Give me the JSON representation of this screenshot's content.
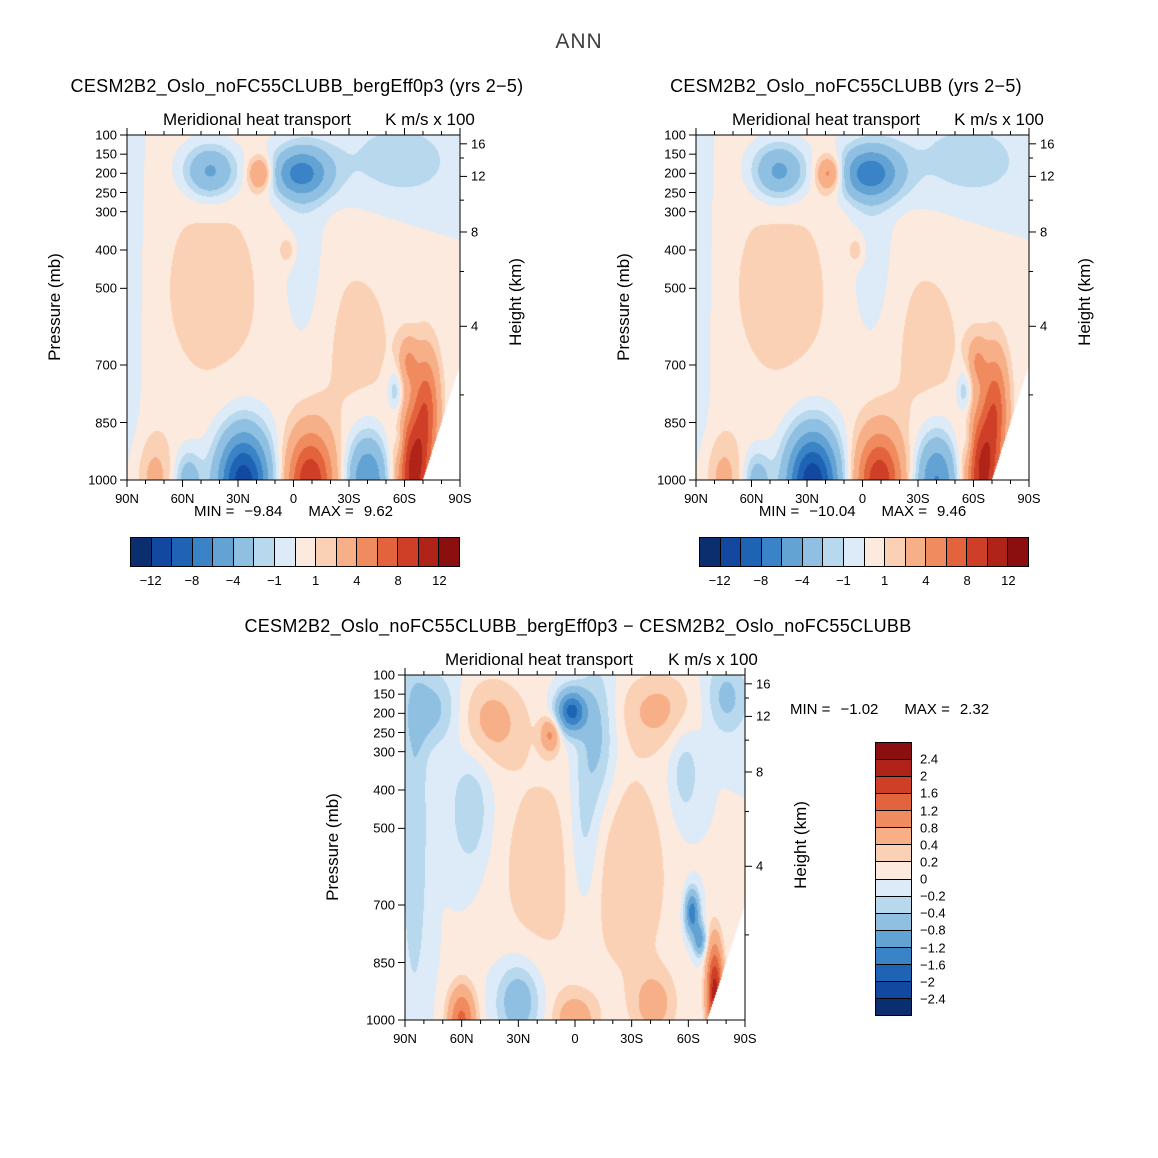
{
  "figure_title": "ANN",
  "chart_data": {
    "type": "contour",
    "subtitle_left": "Meridional heat transport",
    "subtitle_right": "K m/s x 100",
    "ylabel": "Pressure (mb)",
    "ylabel_right": "Height (km)",
    "x_tick_labels": [
      "90N",
      "60N",
      "30N",
      "0",
      "30S",
      "60S",
      "90S"
    ],
    "lat_range": [
      90,
      -90
    ],
    "pressure_range": [
      100,
      1000
    ],
    "pressure_ticks": [
      100,
      150,
      200,
      250,
      300,
      400,
      500,
      700,
      850,
      1000
    ],
    "pressure_tick_labels": [
      "100",
      "150",
      "200",
      "250",
      "300",
      "400",
      "500",
      "700",
      "850",
      "1000"
    ],
    "height_ticks": [
      {
        "label": "16",
        "p": 123
      },
      {
        "label": "12",
        "p": 208
      },
      {
        "label": "8",
        "p": 353
      },
      {
        "label": "4",
        "p": 599
      }
    ],
    "height_minor_ticks_p": [
      160,
      270,
      456,
      778
    ],
    "palette": [
      "#0a2e6e",
      "#1248a0",
      "#1f63b5",
      "#3a83c6",
      "#62a3d4",
      "#8fc0e2",
      "#b8d8ee",
      "#dcebf7",
      "#fdeade",
      "#fbd1b5",
      "#f7af88",
      "#f08b5f",
      "#e3633c",
      "#cf3f27",
      "#b02318",
      "#8c0f10"
    ],
    "main_levels": [
      -12,
      -10,
      -8,
      -6,
      -4,
      -2,
      -1,
      0,
      1,
      2,
      4,
      6,
      8,
      10,
      12
    ],
    "main_level_labels": [
      "−12",
      "−8",
      "−4",
      "−1",
      "1",
      "4",
      "8",
      "12"
    ],
    "main_label_positions": [
      0,
      2,
      4,
      6,
      8,
      10,
      12,
      14
    ],
    "diff_levels": [
      -2.4,
      -2,
      -1.6,
      -1.2,
      -0.8,
      -0.4,
      -0.2,
      0,
      0.2,
      0.4,
      0.8,
      1.2,
      1.6,
      2,
      2.4
    ],
    "diff_level_labels": [
      "2.4",
      "2",
      "1.6",
      "1.2",
      "0.8",
      "0.4",
      "0.2",
      "0",
      "−0.2",
      "−0.4",
      "−0.8",
      "−1.2",
      "−1.6",
      "−2",
      "−2.4"
    ],
    "panels": [
      {
        "title": "CESM2B2_Oslo_noFC55CLUBB_bergEff0p3 (yrs 2−5)",
        "min_label": "MIN =",
        "min_value": "−9.84",
        "max_label": "MAX =",
        "max_value": "9.62",
        "field": "case1",
        "levels": "main"
      },
      {
        "title": "CESM2B2_Oslo_noFC55CLUBB (yrs 2−5)",
        "min_label": "MIN =",
        "min_value": "−10.04",
        "max_label": "MAX =",
        "max_value": "9.46",
        "field": "case2",
        "levels": "main"
      },
      {
        "title": "CESM2B2_Oslo_noFC55CLUBB_bergEff0p3 − CESM2B2_Oslo_noFC55CLUBB",
        "min_label": "MIN =",
        "min_value": "−1.02",
        "max_label": "MAX =",
        "max_value": "2.32",
        "field": "diff",
        "levels": "diff"
      }
    ],
    "fields": {
      "case1": [
        [
          45,
          500,
          1.3,
          30,
          300
        ],
        [
          -35,
          650,
          1.2,
          24,
          260
        ],
        [
          -5,
          450,
          -1.3,
          9,
          170
        ],
        [
          -55,
          170,
          -1.6,
          26,
          90
        ],
        [
          45,
          195,
          -5,
          10,
          48
        ],
        [
          -4,
          200,
          -6.8,
          11,
          46
        ],
        [
          18,
          200,
          4.5,
          4.5,
          30
        ],
        [
          3,
          400,
          1.6,
          3.5,
          30
        ],
        [
          27,
          1005,
          -11.5,
          10,
          95
        ],
        [
          -9,
          1005,
          9.5,
          9,
          90
        ],
        [
          -40,
          1000,
          -6.5,
          8,
          85
        ],
        [
          -65,
          980,
          10.5,
          6.5,
          110
        ],
        [
          -72,
          800,
          6,
          5,
          100
        ],
        [
          -62,
          690,
          3.2,
          3.5,
          45
        ],
        [
          -55,
          770,
          -2.6,
          3,
          40
        ],
        [
          -57,
          900,
          -2.2,
          2.2,
          45
        ],
        [
          75,
          1000,
          2.3,
          7,
          80
        ],
        [
          57,
          1005,
          -3.6,
          5,
          55
        ],
        [
          88,
          400,
          -1.3,
          5,
          350
        ]
      ],
      "case2": [
        [
          45,
          500,
          1.3,
          30,
          300
        ],
        [
          -35,
          650,
          1.2,
          24,
          260
        ],
        [
          -5,
          450,
          -1.3,
          9,
          170
        ],
        [
          -55,
          170,
          -1.6,
          26,
          90
        ],
        [
          45,
          195,
          -5.2,
          10,
          50
        ],
        [
          -4,
          200,
          -7.2,
          11.5,
          48
        ],
        [
          18,
          200,
          4.8,
          5,
          32
        ],
        [
          3,
          400,
          1.5,
          3.5,
          30
        ],
        [
          27,
          1005,
          -11.8,
          10,
          95
        ],
        [
          -9,
          1005,
          9.3,
          9,
          90
        ],
        [
          -40,
          1000,
          -6.6,
          8,
          85
        ],
        [
          -65,
          980,
          10.2,
          6.5,
          110
        ],
        [
          -72,
          800,
          6,
          5,
          100
        ],
        [
          -62,
          690,
          3.2,
          3.5,
          45
        ],
        [
          -55,
          770,
          -2.6,
          3,
          40
        ],
        [
          -57,
          900,
          -2.2,
          2.2,
          45
        ],
        [
          75,
          1000,
          2.3,
          7,
          80
        ],
        [
          57,
          1005,
          -3.4,
          5,
          55
        ],
        [
          88,
          400,
          -1.3,
          5,
          350
        ]
      ],
      "diff": [
        [
          2,
          195,
          -1.75,
          5.5,
          38
        ],
        [
          13,
          255,
          0.8,
          3.5,
          30
        ],
        [
          45,
          220,
          0.5,
          13,
          80
        ],
        [
          75,
          190,
          -0.5,
          10,
          70
        ],
        [
          -12,
          260,
          -0.5,
          7,
          130
        ],
        [
          -45,
          190,
          0.45,
          15,
          70
        ],
        [
          -80,
          160,
          -0.5,
          8,
          70
        ],
        [
          60,
          1000,
          1.3,
          5,
          60
        ],
        [
          30,
          950,
          -0.7,
          8,
          70
        ],
        [
          0,
          1000,
          0.6,
          8,
          50
        ],
        [
          -62,
          720,
          -1.5,
          2.6,
          40
        ],
        [
          -66,
          790,
          -1.1,
          2.2,
          28
        ],
        [
          -74,
          930,
          2.2,
          3,
          90
        ],
        [
          -30,
          620,
          0.35,
          16,
          220
        ],
        [
          18,
          600,
          0.3,
          20,
          220
        ],
        [
          -42,
          960,
          0.5,
          8,
          60
        ],
        [
          85,
          500,
          -0.4,
          5,
          320
        ],
        [
          -5,
          520,
          -0.4,
          6,
          160
        ],
        [
          55,
          450,
          -0.4,
          8,
          120
        ],
        [
          -58,
          350,
          -0.35,
          6,
          100
        ]
      ]
    },
    "terrain_mask": {
      "lat_edge": -70,
      "slope_mb_per_deg": 15
    }
  }
}
